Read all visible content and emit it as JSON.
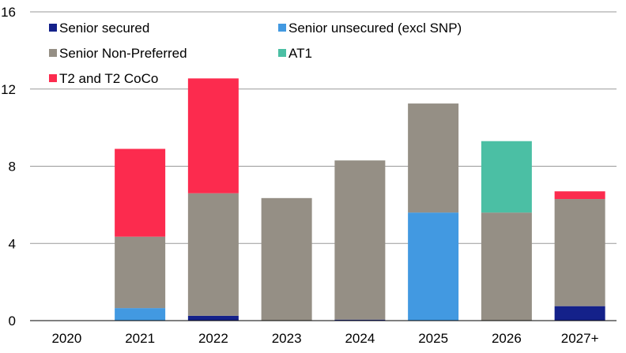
{
  "chart_data": {
    "type": "bar",
    "stacked": true,
    "title": "",
    "xlabel": "",
    "ylabel": "",
    "ylim": [
      0,
      16
    ],
    "yticks": [
      0,
      4,
      8,
      12,
      16
    ],
    "grid": "horizontal",
    "legend_position": "top-left",
    "categories": [
      "2020",
      "2021",
      "2022",
      "2023",
      "2024",
      "2025",
      "2026",
      "2027+"
    ],
    "series": [
      {
        "name": "Senior secured",
        "color": "#14218a",
        "values": [
          0,
          0,
          0.25,
          0,
          0.05,
          0,
          0,
          0.75
        ]
      },
      {
        "name": "Senior unsecured (excl SNP)",
        "color": "#4299e1",
        "values": [
          0,
          0.65,
          0,
          0,
          0,
          5.6,
          0,
          0
        ]
      },
      {
        "name": "Senior Non-Preferred",
        "color": "#958f85",
        "values": [
          0,
          3.7,
          6.35,
          6.35,
          8.25,
          5.65,
          5.6,
          5.55
        ]
      },
      {
        "name": "AT1",
        "color": "#4bbfa4",
        "values": [
          0,
          0,
          0,
          0,
          0,
          0,
          3.7,
          0
        ]
      },
      {
        "name": "T2 and T2 CoCo",
        "color": "#fc2b4e",
        "values": [
          0,
          4.55,
          5.95,
          0,
          0,
          0,
          0,
          0.4
        ]
      }
    ]
  }
}
